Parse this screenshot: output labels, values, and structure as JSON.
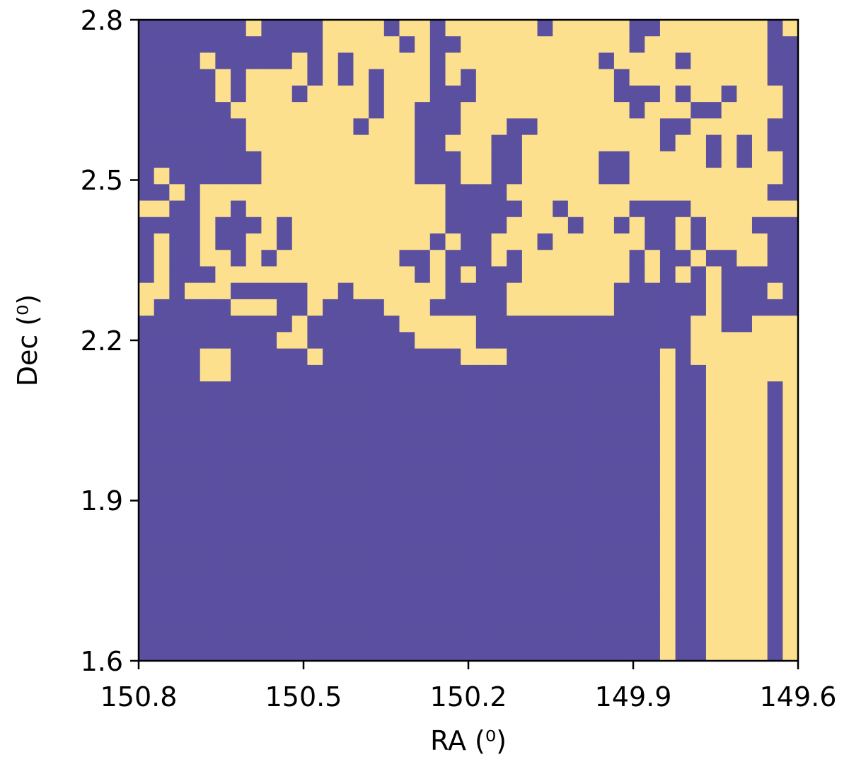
{
  "chart_data": {
    "type": "heatmap",
    "title": "",
    "xlabel": "RA (⁰)",
    "ylabel": "Dec (⁰)",
    "xlim": [
      150.8,
      149.6
    ],
    "ylim": [
      1.6,
      2.8
    ],
    "x_inverted": true,
    "x_ticks": [
      "150.8",
      "150.5",
      "150.2",
      "149.9",
      "149.6"
    ],
    "y_ticks": [
      "1.6",
      "1.9",
      "2.2",
      "2.5",
      "2.8"
    ],
    "grid": false,
    "legend": "none",
    "colors": {
      "1": "#5b4fa0",
      "0": "#fce08e"
    },
    "value_meaning": "binary mask, 1 = dark purple, 0 = pale yellow",
    "row_order": "top (Dec 2.8) to bottom (Dec 1.6)",
    "col_order": "left (RA 150.8) to right (RA 149.6)",
    "matrix": [
      "1111111011110000100100000010000011000000010",
      "1111111111110000010110000000000010000000011",
      "1111011111010100000100000000001000010000011",
      "1111101000010101000101000000000100000000011",
      "1111101000100001000111000000000111010010001",
      "1111110000000001001110000000000010001100001",
      "1111111000000010001110001100000000110000011",
      "1111111000000000001100011000000000100101011",
      "1111111100000000001110011000001100000101001",
      "1011111100000000001110011000001100000000001",
      "1101000000000000000011110000000000000000011",
      "0011001000000000000011111001000011110000000",
      "1111011101000000000011110000100101101000111",
      "1011011001000000000101100010000001101000011",
      "1011001010000000011011101000000010110110011",
      "1011100000000000001010111000000010101011111",
      "0010001111100100000011110000000111111011101",
      "0111110001101111000111110000000111111011111",
      "1111111111011111100000111111111111110011000",
      "1111111110011111110000111111111111110000000",
      "1111001111101111111110001111111111010000000",
      "1111001111111111111111111111111111011000000",
      "1111111111111111111111111111111111011000010",
      "1111111111111111111111111111111111011000010",
      "1111111111111111111111111111111111011000010",
      "1111111111111111111111111111111111011000010",
      "1111111111111111111111111111111111011000010",
      "1111111111111111111111111111111111011000010",
      "1111111111111111111111111111111111011000010",
      "1111111111111111111111111111111111011000010",
      "1111111111111111111111111111111111011000010",
      "1111111111111111111111111111111111011000010",
      "1111111111111111111111111111111111011000010",
      "1111111111111111111111111111111111011000010",
      "1111111111111111111111111111111111011000010",
      "1111111111111111111111111111111111011000010",
      "1111111111111111111111111111111111011000010",
      "1111111111111111111111111111111111011000010",
      "1111111111111111111111111111111111011000010"
    ]
  }
}
